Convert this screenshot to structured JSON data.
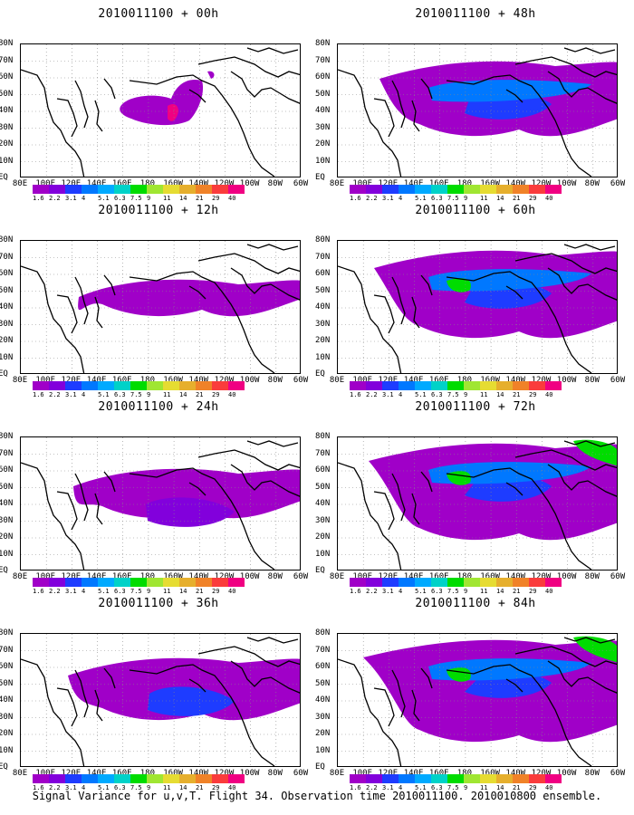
{
  "panels": [
    {
      "title": "2010011100 + 00h",
      "level": 0
    },
    {
      "title": "2010011100 + 48h",
      "level": 4
    },
    {
      "title": "2010011100 + 12h",
      "level": 1
    },
    {
      "title": "2010011100 + 60h",
      "level": 5
    },
    {
      "title": "2010011100 + 24h",
      "level": 2
    },
    {
      "title": "2010011100 + 72h",
      "level": 6
    },
    {
      "title": "2010011100 + 36h",
      "level": 3
    },
    {
      "title": "2010011100 + 84h",
      "level": 7
    }
  ],
  "lat_labels": [
    "80N",
    "70N",
    "60N",
    "50N",
    "40N",
    "30N",
    "20N",
    "10N",
    "EQ"
  ],
  "lon_labels": [
    "80E",
    "100E",
    "120E",
    "140E",
    "160E",
    "180",
    "160W",
    "140W",
    "120W",
    "100W",
    "80W",
    "60W"
  ],
  "colorbar": {
    "colors": [
      "#a000c8",
      "#8200dc",
      "#1e3cff",
      "#0078ff",
      "#00aaff",
      "#00d2c8",
      "#00dc00",
      "#a0e632",
      "#e6dc32",
      "#e6af2d",
      "#f08228",
      "#fa3c3c",
      "#f00082"
    ],
    "labels": [
      "1.6",
      "2.2",
      "3.1",
      "4",
      "5.1",
      "6.3",
      "7.5",
      "9",
      "11",
      "14",
      "21",
      "29",
      "40"
    ]
  },
  "footer": "Signal Variance for u,v,T. Flight 34. Observation time 2010011100. 2010010800 ensemble."
}
